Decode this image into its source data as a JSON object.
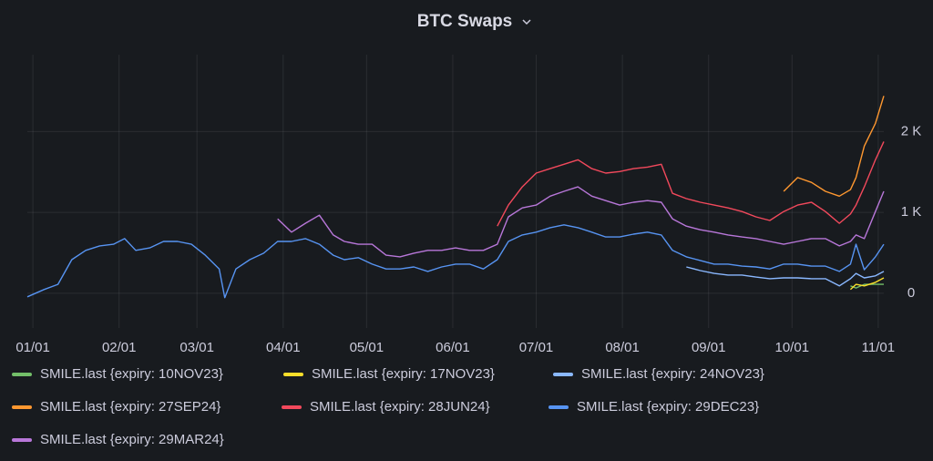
{
  "chart_data": {
    "type": "line",
    "title": "BTC Swaps",
    "x": [
      -2,
      4,
      9,
      14,
      19,
      24,
      29,
      33,
      37,
      42,
      47,
      52,
      57,
      62,
      67,
      69,
      73,
      78,
      83,
      88,
      93,
      98,
      103,
      108,
      112,
      117,
      122,
      127,
      132,
      137,
      142,
      147,
      152,
      157,
      162,
      167,
      171,
      176,
      181,
      186,
      191,
      196,
      201,
      206,
      211,
      216,
      221,
      226,
      230,
      235,
      240,
      245,
      250,
      255,
      260,
      265,
      270,
      275,
      280,
      285,
      290,
      294,
      296,
      299,
      303,
      306
    ],
    "xlim": [
      -2,
      306
    ],
    "xticks": [
      {
        "value": 0,
        "label": "01/01"
      },
      {
        "value": 31,
        "label": "02/01"
      },
      {
        "value": 59,
        "label": "03/01"
      },
      {
        "value": 90,
        "label": "04/01"
      },
      {
        "value": 120,
        "label": "05/01"
      },
      {
        "value": 151,
        "label": "06/01"
      },
      {
        "value": 181,
        "label": "07/01"
      },
      {
        "value": 212,
        "label": "08/01"
      },
      {
        "value": 243,
        "label": "09/01"
      },
      {
        "value": 273,
        "label": "10/01"
      },
      {
        "value": 304,
        "label": "11/01"
      }
    ],
    "ylim": [
      -430,
      2950
    ],
    "yticks": [
      0,
      {
        "value": 1000,
        "label": "1 K"
      },
      {
        "value": 2000,
        "label": "2 K"
      }
    ],
    "grid": true,
    "series": [
      {
        "name": "SMILE.last {expiry: 10NOV23}",
        "color": "#73bf69",
        "values": [
          null,
          null,
          null,
          null,
          null,
          null,
          null,
          null,
          null,
          null,
          null,
          null,
          null,
          null,
          null,
          null,
          null,
          null,
          null,
          null,
          null,
          null,
          null,
          null,
          null,
          null,
          null,
          null,
          null,
          null,
          null,
          null,
          null,
          null,
          null,
          null,
          null,
          null,
          null,
          null,
          null,
          null,
          null,
          null,
          null,
          null,
          null,
          null,
          null,
          null,
          null,
          null,
          null,
          null,
          null,
          null,
          null,
          null,
          null,
          null,
          null,
          90,
          65,
          110,
          110,
          110
        ]
      },
      {
        "name": "SMILE.last {expiry: 17NOV23}",
        "color": "#fade2a",
        "values": [
          null,
          null,
          null,
          null,
          null,
          null,
          null,
          null,
          null,
          null,
          null,
          null,
          null,
          null,
          null,
          null,
          null,
          null,
          null,
          null,
          null,
          null,
          null,
          null,
          null,
          null,
          null,
          null,
          null,
          null,
          null,
          null,
          null,
          null,
          null,
          null,
          null,
          null,
          null,
          null,
          null,
          null,
          null,
          null,
          null,
          null,
          null,
          null,
          null,
          null,
          null,
          null,
          null,
          null,
          null,
          null,
          null,
          null,
          null,
          null,
          null,
          45,
          110,
          90,
          135,
          190
        ]
      },
      {
        "name": "SMILE.last {expiry: 24NOV23}",
        "color": "#8ab8ff",
        "values": [
          null,
          null,
          null,
          null,
          null,
          null,
          null,
          null,
          null,
          null,
          null,
          null,
          null,
          null,
          null,
          null,
          null,
          null,
          null,
          null,
          null,
          null,
          null,
          null,
          null,
          null,
          null,
          null,
          null,
          null,
          null,
          null,
          null,
          null,
          null,
          null,
          null,
          null,
          null,
          null,
          null,
          null,
          null,
          null,
          null,
          null,
          null,
          null,
          null,
          325,
          280,
          245,
          225,
          225,
          200,
          180,
          190,
          190,
          180,
          180,
          90,
          180,
          245,
          190,
          215,
          270
        ]
      },
      {
        "name": "SMILE.last {expiry: 27SEP24}",
        "color": "#ff9830",
        "values": [
          null,
          null,
          null,
          null,
          null,
          null,
          null,
          null,
          null,
          null,
          null,
          null,
          null,
          null,
          null,
          null,
          null,
          null,
          null,
          null,
          null,
          null,
          null,
          null,
          null,
          null,
          null,
          null,
          null,
          null,
          null,
          null,
          null,
          null,
          null,
          null,
          null,
          null,
          null,
          null,
          null,
          null,
          null,
          null,
          null,
          null,
          null,
          null,
          null,
          null,
          null,
          null,
          null,
          null,
          null,
          null,
          1260,
          1430,
          1370,
          1260,
          1200,
          1280,
          1430,
          1820,
          2100,
          2440
        ]
      },
      {
        "name": "SMILE.last {expiry: 28JUN24}",
        "color": "#f2495c",
        "values": [
          null,
          null,
          null,
          null,
          null,
          null,
          null,
          null,
          null,
          null,
          null,
          null,
          null,
          null,
          null,
          null,
          null,
          null,
          null,
          null,
          null,
          null,
          null,
          null,
          null,
          null,
          null,
          null,
          null,
          null,
          null,
          null,
          null,
          null,
          null,
          830,
          1090,
          1315,
          1485,
          1540,
          1595,
          1650,
          1540,
          1485,
          1505,
          1540,
          1560,
          1595,
          1235,
          1170,
          1125,
          1090,
          1055,
          1010,
          945,
          900,
          1010,
          1090,
          1125,
          1010,
          865,
          980,
          1090,
          1315,
          1650,
          1875
        ]
      },
      {
        "name": "SMILE.last {expiry: 29DEC23}",
        "color": "#5794f2",
        "values": [
          -45,
          45,
          110,
          415,
          530,
          585,
          605,
          675,
          530,
          560,
          640,
          640,
          605,
          470,
          300,
          -55,
          300,
          415,
          495,
          640,
          640,
          675,
          605,
          470,
          415,
          440,
          360,
          300,
          300,
          325,
          270,
          325,
          360,
          360,
          300,
          415,
          640,
          720,
          755,
          810,
          845,
          810,
          755,
          695,
          695,
          730,
          755,
          720,
          530,
          450,
          405,
          360,
          360,
          335,
          325,
          300,
          360,
          360,
          335,
          335,
          270,
          360,
          605,
          290,
          450,
          605
        ]
      },
      {
        "name": "SMILE.last {expiry: 29MAR24}",
        "color": "#b877d9",
        "values": [
          null,
          null,
          null,
          null,
          null,
          null,
          null,
          null,
          null,
          null,
          null,
          null,
          null,
          null,
          null,
          null,
          null,
          null,
          null,
          920,
          755,
          865,
          965,
          720,
          640,
          605,
          605,
          470,
          450,
          495,
          530,
          530,
          560,
          530,
          530,
          605,
          945,
          1055,
          1090,
          1200,
          1260,
          1315,
          1200,
          1145,
          1090,
          1125,
          1145,
          1125,
          920,
          830,
          785,
          755,
          720,
          695,
          675,
          640,
          605,
          640,
          675,
          675,
          585,
          640,
          720,
          675,
          1010,
          1260
        ]
      }
    ]
  }
}
